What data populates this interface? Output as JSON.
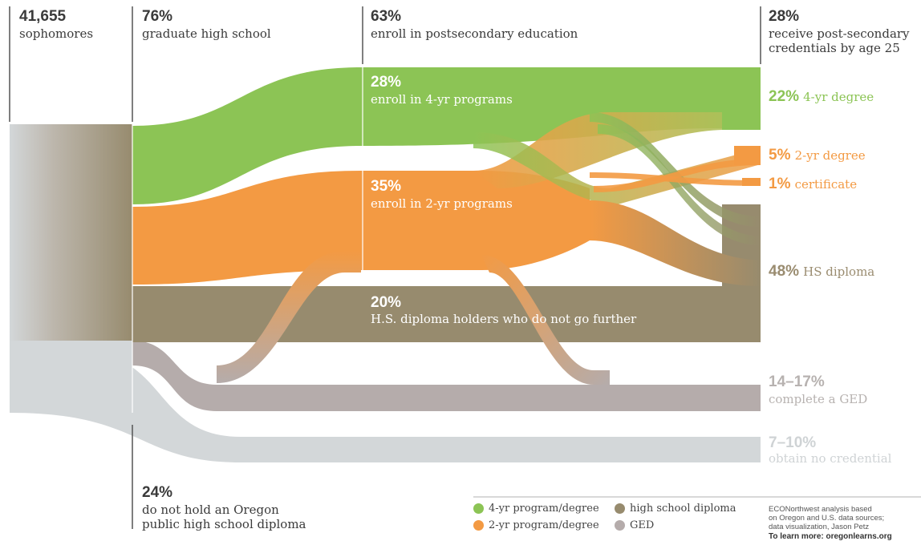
{
  "colors": {
    "green": "#8cc455",
    "orange": "#f39a43",
    "hs": "#978b6e",
    "ged": "#b5acab",
    "none": "#d3d7d9"
  },
  "columns": {
    "sophomores": {
      "pct": "41,655",
      "label": "sophomores"
    },
    "graduate": {
      "pct": "76%",
      "label": "graduate high school"
    },
    "enroll": {
      "pct": "63%",
      "label": "enroll in postsecondary education"
    },
    "credentials": {
      "pct": "28%",
      "label1": "receive post-secondary",
      "label2": "credentials by age 25"
    },
    "no_diploma": {
      "pct": "24%",
      "label1": "do not hold an Oregon",
      "label2": "public high school diploma"
    }
  },
  "inner": {
    "four_yr": {
      "pct": "28%",
      "label": "enroll in 4-yr programs"
    },
    "two_yr": {
      "pct": "35%",
      "label": "enroll in 2-yr programs"
    },
    "hs_only": {
      "pct": "20%",
      "label": "H.S. diploma holders who do not go further"
    }
  },
  "outcomes": {
    "four_yr_degree": {
      "pct": "22%",
      "label": "4-yr degree"
    },
    "two_yr_degree": {
      "pct": "5%",
      "label": "2-yr degree"
    },
    "certificate": {
      "pct": "1%",
      "label": "certificate"
    },
    "hs_diploma": {
      "pct": "48%",
      "label": "HS diploma"
    },
    "ged": {
      "pct": "14–17%",
      "label": "complete a GED"
    },
    "no_credential": {
      "pct": "7–10%",
      "label": "obtain no credential"
    }
  },
  "legend": {
    "green": "4-yr program/degree",
    "orange": "2-yr program/degree",
    "hs": "high school diploma",
    "ged": "GED"
  },
  "credit": {
    "text": "ECONorthwest analysis based\non Oregon and U.S. data sources;\ndata visualization, Jason Petz",
    "link": "To learn more: oregonlearns.org"
  }
}
